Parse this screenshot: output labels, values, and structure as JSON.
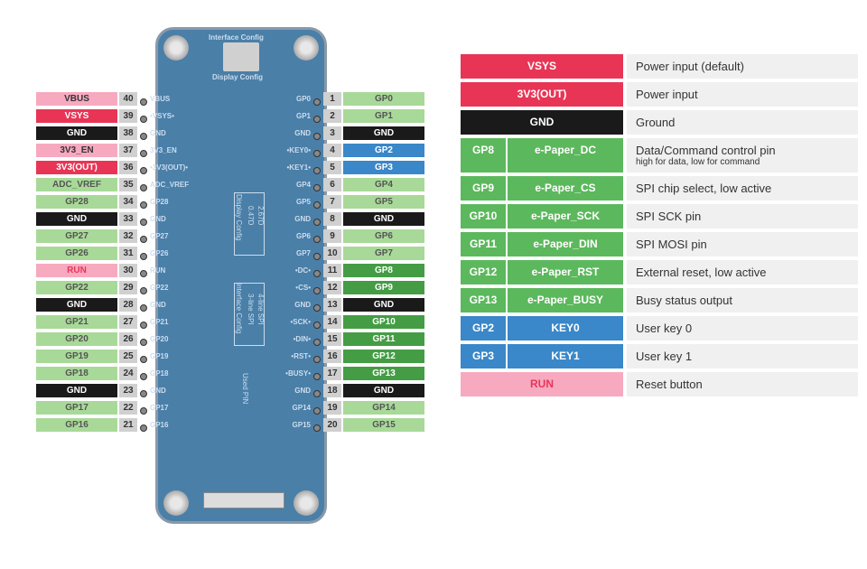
{
  "colors": {
    "pink": "#f7a9c0",
    "red": "#e83556",
    "black": "#1a1a1a",
    "ltgreen": "#a8d998",
    "green": "#5cb85c",
    "dkgreen": "#449d44",
    "blue": "#3a87c9",
    "gray": "#d0d0d0",
    "bgray": "#f0f0f0"
  },
  "board": {
    "interface_config": "Interface Config",
    "display_config": "Display Config",
    "display_label": "Display Config",
    "iface_label": "Interface Config",
    "used_pin": "Used PIN",
    "n047d": "0.47D",
    "n267d": "2.67D",
    "spi3": "3-line SPI",
    "spi4": "4-line SPI"
  },
  "left_pins": [
    {
      "label": "VBUS",
      "num": "40",
      "bg": "pink",
      "txt": "#333",
      "bl": "VBUS"
    },
    {
      "label": "VSYS",
      "num": "39",
      "bg": "red",
      "bl": "VSYS",
      "dot": true
    },
    {
      "label": "GND",
      "num": "38",
      "bg": "black",
      "bl": "GND"
    },
    {
      "label": "3V3_EN",
      "num": "37",
      "bg": "pink",
      "txt": "#333",
      "bl": "3V3_EN"
    },
    {
      "label": "3V3(OUT)",
      "num": "36",
      "bg": "red",
      "bl": "3V3(OUT)",
      "dot": true
    },
    {
      "label": "ADC_VREF",
      "num": "35",
      "bg": "ltgreen",
      "txt": "#555",
      "bl": "ADC_VREF"
    },
    {
      "label": "GP28",
      "num": "34",
      "bg": "ltgreen",
      "txt": "#555",
      "bl": "GP28"
    },
    {
      "label": "GND",
      "num": "33",
      "bg": "black",
      "bl": "GND"
    },
    {
      "label": "GP27",
      "num": "32",
      "bg": "ltgreen",
      "txt": "#555",
      "bl": "GP27"
    },
    {
      "label": "GP26",
      "num": "31",
      "bg": "ltgreen",
      "txt": "#555",
      "bl": "GP26"
    },
    {
      "label": "RUN",
      "num": "30",
      "bg": "pink",
      "txt": "#e83556",
      "bl": "RUN"
    },
    {
      "label": "GP22",
      "num": "29",
      "bg": "ltgreen",
      "txt": "#555",
      "bl": "GP22"
    },
    {
      "label": "GND",
      "num": "28",
      "bg": "black",
      "bl": "GND"
    },
    {
      "label": "GP21",
      "num": "27",
      "bg": "ltgreen",
      "txt": "#555",
      "bl": "GP21"
    },
    {
      "label": "GP20",
      "num": "26",
      "bg": "ltgreen",
      "txt": "#555",
      "bl": "GP20"
    },
    {
      "label": "GP19",
      "num": "25",
      "bg": "ltgreen",
      "txt": "#555",
      "bl": "GP19"
    },
    {
      "label": "GP18",
      "num": "24",
      "bg": "ltgreen",
      "txt": "#555",
      "bl": "GP18"
    },
    {
      "label": "GND",
      "num": "23",
      "bg": "black",
      "bl": "GND"
    },
    {
      "label": "GP17",
      "num": "22",
      "bg": "ltgreen",
      "txt": "#555",
      "bl": "GP17"
    },
    {
      "label": "GP16",
      "num": "21",
      "bg": "ltgreen",
      "txt": "#555",
      "bl": "GP16"
    }
  ],
  "right_pins": [
    {
      "bl": "GP0",
      "num": "1",
      "label": "GP0",
      "bg": "ltgreen",
      "txt": "#555"
    },
    {
      "bl": "GP1",
      "num": "2",
      "label": "GP1",
      "bg": "ltgreen",
      "txt": "#555"
    },
    {
      "bl": "GND",
      "num": "3",
      "label": "GND",
      "bg": "black"
    },
    {
      "bl": "KEY0",
      "num": "4",
      "label": "GP2",
      "bg": "blue",
      "dot": true
    },
    {
      "bl": "KEY1",
      "num": "5",
      "label": "GP3",
      "bg": "blue",
      "dot": true
    },
    {
      "bl": "GP4",
      "num": "6",
      "label": "GP4",
      "bg": "ltgreen",
      "txt": "#555"
    },
    {
      "bl": "GP5",
      "num": "7",
      "label": "GP5",
      "bg": "ltgreen",
      "txt": "#555"
    },
    {
      "bl": "GND",
      "num": "8",
      "label": "GND",
      "bg": "black"
    },
    {
      "bl": "GP6",
      "num": "9",
      "label": "GP6",
      "bg": "ltgreen",
      "txt": "#555"
    },
    {
      "bl": "GP7",
      "num": "10",
      "label": "GP7",
      "bg": "ltgreen",
      "txt": "#555"
    },
    {
      "bl": "DC",
      "num": "11",
      "label": "GP8",
      "bg": "dkgreen",
      "dot": true
    },
    {
      "bl": "CS",
      "num": "12",
      "label": "GP9",
      "bg": "dkgreen",
      "dot": true
    },
    {
      "bl": "GND",
      "num": "13",
      "label": "GND",
      "bg": "black"
    },
    {
      "bl": "SCK",
      "num": "14",
      "label": "GP10",
      "bg": "dkgreen",
      "dot": true
    },
    {
      "bl": "DIN",
      "num": "15",
      "label": "GP11",
      "bg": "dkgreen",
      "dot": true
    },
    {
      "bl": "RST",
      "num": "16",
      "label": "GP12",
      "bg": "dkgreen",
      "dot": true
    },
    {
      "bl": "BUSY",
      "num": "17",
      "label": "GP13",
      "bg": "dkgreen",
      "dot": true
    },
    {
      "bl": "GND",
      "num": "18",
      "label": "GND",
      "bg": "black"
    },
    {
      "bl": "GP14",
      "num": "19",
      "label": "GP14",
      "bg": "ltgreen",
      "txt": "#555"
    },
    {
      "bl": "GP15",
      "num": "20",
      "label": "GP15",
      "bg": "ltgreen",
      "txt": "#555"
    }
  ],
  "legend": [
    {
      "k": [
        "VSYS"
      ],
      "bg": "red",
      "desc": "Power input (default)"
    },
    {
      "k": [
        "3V3(OUT)"
      ],
      "bg": "red",
      "desc": "Power input"
    },
    {
      "k": [
        "GND"
      ],
      "bg": "black",
      "desc": "Ground"
    },
    {
      "k": [
        "GP8",
        "e-Paper_DC"
      ],
      "bg": "green",
      "desc": "Data/Command control pin",
      "sub": "high for data, low for command"
    },
    {
      "k": [
        "GP9",
        "e-Paper_CS"
      ],
      "bg": "green",
      "desc": "SPI chip select, low active"
    },
    {
      "k": [
        "GP10",
        "e-Paper_SCK"
      ],
      "bg": "green",
      "desc": "SPI SCK pin"
    },
    {
      "k": [
        "GP11",
        "e-Paper_DIN"
      ],
      "bg": "green",
      "desc": "SPI MOSI pin"
    },
    {
      "k": [
        "GP12",
        "e-Paper_RST"
      ],
      "bg": "green",
      "desc": "External reset, low active"
    },
    {
      "k": [
        "GP13",
        "e-Paper_BUSY"
      ],
      "bg": "green",
      "desc": "Busy status output"
    },
    {
      "k": [
        "GP2",
        "KEY0"
      ],
      "bg": "blue",
      "desc": "User key 0"
    },
    {
      "k": [
        "GP3",
        "KEY1"
      ],
      "bg": "blue",
      "desc": "User key 1"
    },
    {
      "k": [
        "RUN"
      ],
      "bg": "pink",
      "txt": "#e83556",
      "desc": "Reset button"
    }
  ]
}
